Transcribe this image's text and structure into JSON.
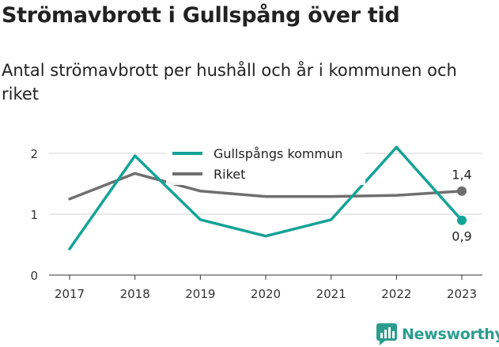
{
  "title": "Strömavbrott i Gullspång över tid",
  "subtitle": "Antal strömavbrott per hushåll och år i kommunen och riket",
  "brand": {
    "name": "Newsworthy",
    "color": "#2a9d8f"
  },
  "chart_data": {
    "type": "line",
    "categories": [
      "2017",
      "2018",
      "2019",
      "2020",
      "2021",
      "2022",
      "2023"
    ],
    "ylim": [
      0,
      2.2
    ],
    "yticks": [
      "0",
      "1",
      "2"
    ],
    "legend_position": "top-center",
    "series": [
      {
        "name": "Gullspångs kommun",
        "color": "#14a396",
        "values": [
          0.43,
          1.96,
          0.91,
          0.64,
          0.91,
          2.1,
          0.9
        ],
        "end_label": "0,9"
      },
      {
        "name": "Riket",
        "color": "#6f6f6f",
        "values": [
          1.25,
          1.67,
          1.38,
          1.29,
          1.29,
          1.31,
          1.38
        ],
        "end_label": "1,4"
      }
    ]
  }
}
